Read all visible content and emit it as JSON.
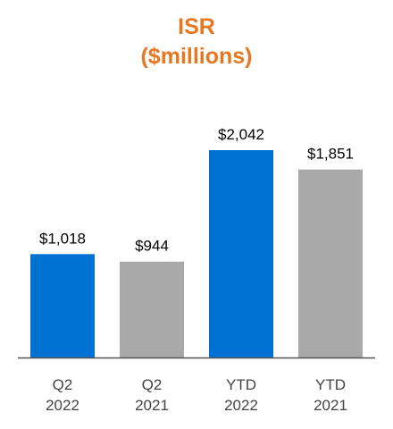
{
  "chart_data": {
    "type": "bar",
    "title_lines": [
      "ISR",
      "($millions)"
    ],
    "categories": [
      [
        "Q2",
        "2022"
      ],
      [
        "Q2",
        "2021"
      ],
      [
        "YTD",
        "2022"
      ],
      [
        "YTD",
        "2021"
      ]
    ],
    "values": [
      1018,
      944,
      2042,
      1851
    ],
    "value_labels": [
      "$1,018",
      "$944",
      "$2,042",
      "$1,851"
    ],
    "bar_colors": [
      "#0070d2",
      "#a9a9a9",
      "#0070d2",
      "#a9a9a9"
    ],
    "ylim": [
      0,
      2500
    ],
    "grid": false,
    "legend": "none",
    "colors": {
      "title": "#e87722",
      "current_year": "#0070d2",
      "prior_year": "#a9a9a9",
      "axis": "#555555",
      "text": "#000000",
      "tick_text": "#444444"
    }
  }
}
